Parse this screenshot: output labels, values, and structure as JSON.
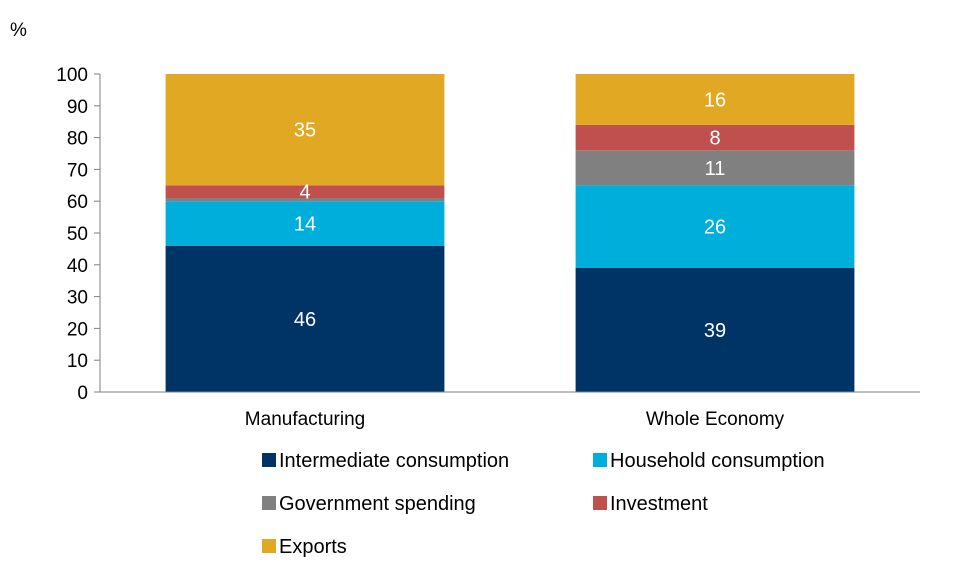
{
  "chart_data": {
    "type": "bar",
    "stacked": true,
    "unit_label": "%",
    "categories": [
      "Manufacturing",
      "Whole Economy"
    ],
    "ylim": [
      0,
      100
    ],
    "yticks": [
      0,
      10,
      20,
      30,
      40,
      50,
      60,
      70,
      80,
      90,
      100
    ],
    "grid": false,
    "legend_position": "bottom",
    "series": [
      {
        "name": "Intermediate consumption",
        "color": "#003366",
        "values": [
          46,
          39
        ],
        "labels": [
          "46",
          "39"
        ]
      },
      {
        "name": "Household consumption",
        "color": "#00AEDB",
        "values": [
          14,
          26
        ],
        "labels": [
          "14",
          "26"
        ]
      },
      {
        "name": "Government spending",
        "color": "#808080",
        "values": [
          1,
          11
        ],
        "labels": [
          "",
          "11"
        ]
      },
      {
        "name": "Investment",
        "color": "#C0504D",
        "values": [
          4,
          8
        ],
        "labels": [
          "4",
          "8"
        ]
      },
      {
        "name": "Exports",
        "color": "#E1A823",
        "values": [
          35,
          16
        ],
        "labels": [
          "35",
          "16"
        ]
      }
    ]
  }
}
